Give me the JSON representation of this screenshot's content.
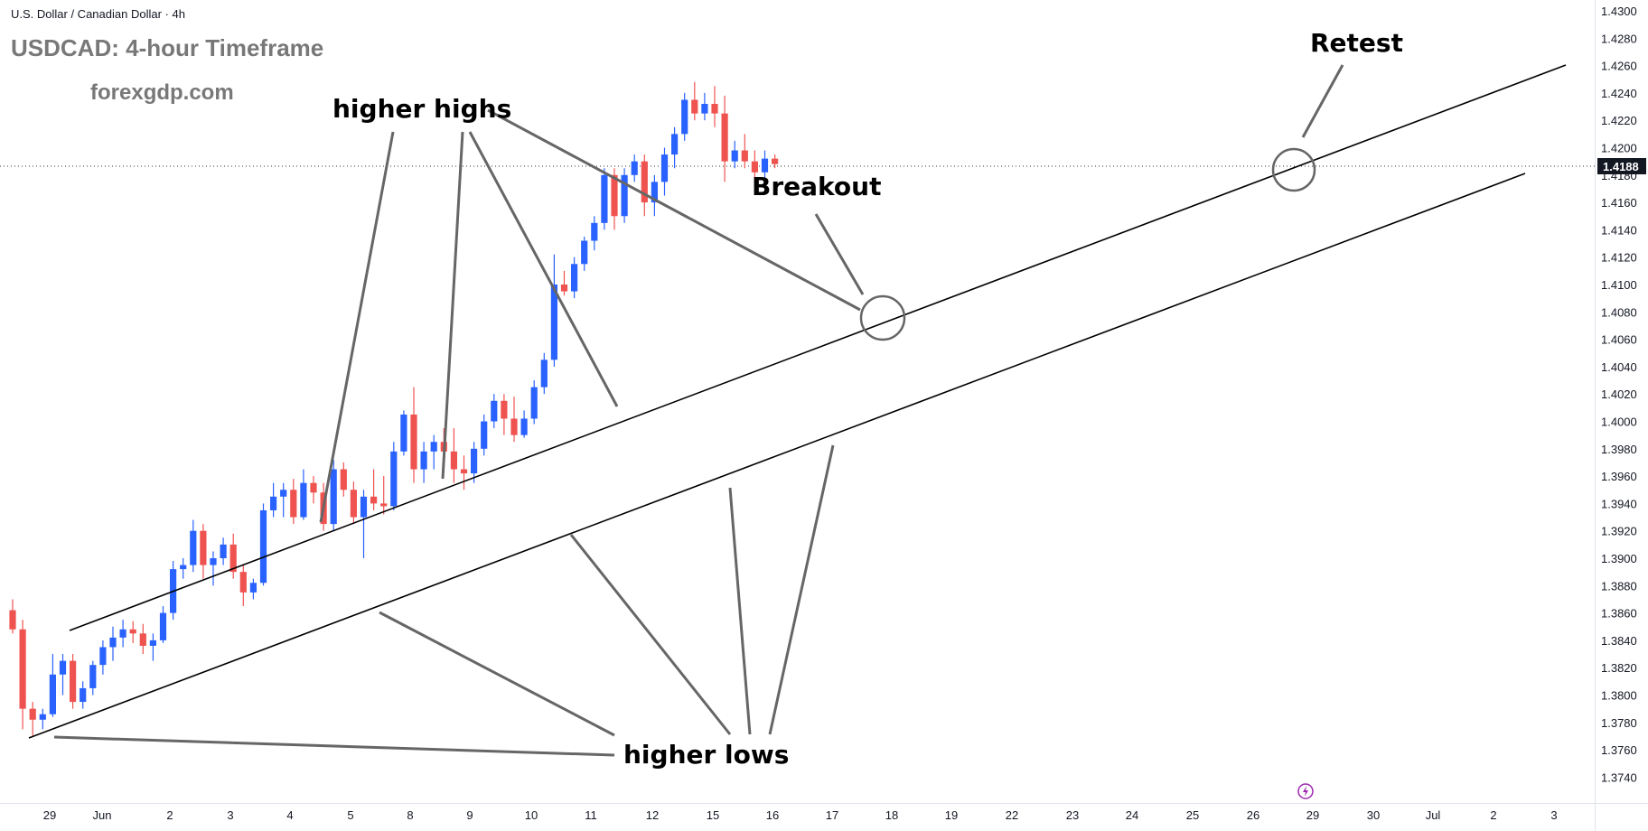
{
  "header": {
    "symbol_line": "U.S. Dollar / Canadian Dollar · 4h",
    "title": "USDCAD: 4-hour Timeframe",
    "watermark": "forexgdp.com"
  },
  "price_axis": {
    "labels": [
      "1.4300",
      "1.4280",
      "1.4260",
      "1.4240",
      "1.4220",
      "1.4200",
      "1.4180",
      "1.4160",
      "1.4140",
      "1.4120",
      "1.4100",
      "1.4080",
      "1.4060",
      "1.4040",
      "1.4020",
      "1.4000",
      "1.3980",
      "1.3960",
      "1.3940",
      "1.3920",
      "1.3900",
      "1.3880",
      "1.3860",
      "1.3840",
      "1.3820",
      "1.3800",
      "1.3780",
      "1.3760",
      "1.3740"
    ],
    "current_price": "1.4188"
  },
  "time_axis": {
    "labels": [
      "29",
      "Jun",
      "2",
      "3",
      "4",
      "5",
      "8",
      "9",
      "10",
      "11",
      "12",
      "15",
      "16",
      "17",
      "18",
      "19",
      "22",
      "23",
      "24",
      "25",
      "26",
      "29",
      "30",
      "Jul",
      "2",
      "3"
    ]
  },
  "annotations": {
    "higher_highs": "higher highs",
    "higher_lows": "higher lows",
    "breakout": "Breakout",
    "retest": "Retest"
  },
  "colors": {
    "bull": "#2962ff",
    "bear": "#ef5350",
    "line": "#000000",
    "pointer": "#666666"
  },
  "chart_data": {
    "type": "candlestick",
    "title": "USDCAD: 4-hour Timeframe",
    "symbol": "U.S. Dollar / Canadian Dollar",
    "timeframe": "4h",
    "ylim": [
      1.373,
      1.4305
    ],
    "current_price": 1.4188,
    "ohlc_approx": [
      [
        1.3862,
        1.387,
        1.3845,
        1.3848
      ],
      [
        1.3848,
        1.3855,
        1.3775,
        1.379
      ],
      [
        1.379,
        1.3795,
        1.377,
        1.3782
      ],
      [
        1.3782,
        1.379,
        1.3775,
        1.3786
      ],
      [
        1.3786,
        1.383,
        1.3784,
        1.3815
      ],
      [
        1.3815,
        1.383,
        1.38,
        1.3825
      ],
      [
        1.3825,
        1.383,
        1.379,
        1.3795
      ],
      [
        1.3795,
        1.381,
        1.379,
        1.3805
      ],
      [
        1.3805,
        1.3825,
        1.38,
        1.3822
      ],
      [
        1.3822,
        1.384,
        1.3815,
        1.3835
      ],
      [
        1.3835,
        1.385,
        1.3825,
        1.3842
      ],
      [
        1.3842,
        1.3855,
        1.3835,
        1.3848
      ],
      [
        1.3848,
        1.3854,
        1.3838,
        1.3845
      ],
      [
        1.3845,
        1.3852,
        1.383,
        1.3836
      ],
      [
        1.3836,
        1.3845,
        1.3825,
        1.384
      ],
      [
        1.384,
        1.3865,
        1.3838,
        1.386
      ],
      [
        1.386,
        1.3898,
        1.3855,
        1.3892
      ],
      [
        1.3892,
        1.39,
        1.3885,
        1.3895
      ],
      [
        1.3895,
        1.3928,
        1.389,
        1.392
      ],
      [
        1.392,
        1.3925,
        1.3885,
        1.3895
      ],
      [
        1.3895,
        1.3905,
        1.388,
        1.39
      ],
      [
        1.39,
        1.3915,
        1.3895,
        1.391
      ],
      [
        1.391,
        1.3918,
        1.3885,
        1.389
      ],
      [
        1.389,
        1.3895,
        1.3865,
        1.3875
      ],
      [
        1.3875,
        1.3885,
        1.387,
        1.3882
      ],
      [
        1.3882,
        1.394,
        1.388,
        1.3935
      ],
      [
        1.3935,
        1.3955,
        1.393,
        1.3945
      ],
      [
        1.3945,
        1.3955,
        1.393,
        1.395
      ],
      [
        1.395,
        1.3958,
        1.3925,
        1.393
      ],
      [
        1.393,
        1.3965,
        1.3928,
        1.3955
      ],
      [
        1.3955,
        1.396,
        1.394,
        1.3948
      ],
      [
        1.3948,
        1.3955,
        1.392,
        1.3925
      ],
      [
        1.3925,
        1.3972,
        1.392,
        1.3965
      ],
      [
        1.3965,
        1.397,
        1.3945,
        1.395
      ],
      [
        1.395,
        1.3956,
        1.3925,
        1.393
      ],
      [
        1.393,
        1.395,
        1.39,
        1.3945
      ],
      [
        1.3945,
        1.3965,
        1.3935,
        1.394
      ],
      [
        1.394,
        1.396,
        1.3932,
        1.3938
      ],
      [
        1.3938,
        1.3985,
        1.3935,
        1.3978
      ],
      [
        1.3978,
        1.4008,
        1.3975,
        1.4005
      ],
      [
        1.4005,
        1.4025,
        1.3955,
        1.3965
      ],
      [
        1.3965,
        1.3985,
        1.3955,
        1.3978
      ],
      [
        1.3978,
        1.399,
        1.3965,
        1.3985
      ],
      [
        1.3985,
        1.3995,
        1.397,
        1.3978
      ],
      [
        1.3978,
        1.3995,
        1.3955,
        1.3965
      ],
      [
        1.3965,
        1.3975,
        1.395,
        1.3962
      ],
      [
        1.3962,
        1.3985,
        1.3955,
        1.398
      ],
      [
        1.398,
        1.4005,
        1.3975,
        1.4
      ],
      [
        1.4,
        1.402,
        1.3995,
        1.4015
      ],
      [
        1.4015,
        1.402,
        1.399,
        1.4002
      ],
      [
        1.4002,
        1.4018,
        1.3985,
        1.399
      ],
      [
        1.399,
        1.4008,
        1.3988,
        1.4002
      ],
      [
        1.4002,
        1.403,
        1.3998,
        1.4025
      ],
      [
        1.4025,
        1.405,
        1.402,
        1.4045
      ],
      [
        1.4045,
        1.4122,
        1.404,
        1.41
      ],
      [
        1.41,
        1.411,
        1.4092,
        1.4095
      ],
      [
        1.4095,
        1.412,
        1.409,
        1.4115
      ],
      [
        1.4115,
        1.4135,
        1.411,
        1.4132
      ],
      [
        1.4132,
        1.415,
        1.4125,
        1.4145
      ],
      [
        1.4145,
        1.4185,
        1.414,
        1.418
      ],
      [
        1.418,
        1.4185,
        1.414,
        1.415
      ],
      [
        1.415,
        1.4185,
        1.4145,
        1.418
      ],
      [
        1.418,
        1.4195,
        1.4175,
        1.419
      ],
      [
        1.419,
        1.4195,
        1.415,
        1.416
      ],
      [
        1.416,
        1.418,
        1.415,
        1.4175
      ],
      [
        1.4175,
        1.42,
        1.4165,
        1.4195
      ],
      [
        1.4195,
        1.4215,
        1.4185,
        1.421
      ],
      [
        1.421,
        1.424,
        1.4205,
        1.4235
      ],
      [
        1.4235,
        1.4248,
        1.422,
        1.4225
      ],
      [
        1.4225,
        1.424,
        1.422,
        1.4232
      ],
      [
        1.4232,
        1.4245,
        1.4215,
        1.4225
      ],
      [
        1.4225,
        1.4238,
        1.4175,
        1.419
      ],
      [
        1.419,
        1.4205,
        1.4185,
        1.4198
      ],
      [
        1.4198,
        1.421,
        1.4185,
        1.419
      ],
      [
        1.419,
        1.4198,
        1.4178,
        1.4182
      ],
      [
        1.4182,
        1.4198,
        1.4178,
        1.4192
      ],
      [
        1.4192,
        1.4195,
        1.4185,
        1.4188
      ]
    ],
    "channel_upper": [
      {
        "x": "May 29",
        "y": 1.3846
      },
      {
        "x": "Jun 29",
        "y": 1.4258
      }
    ],
    "channel_lower": [
      {
        "x": "May 28",
        "y": 1.377
      },
      {
        "x": "Jun 29",
        "y": 1.4183
      }
    ]
  }
}
